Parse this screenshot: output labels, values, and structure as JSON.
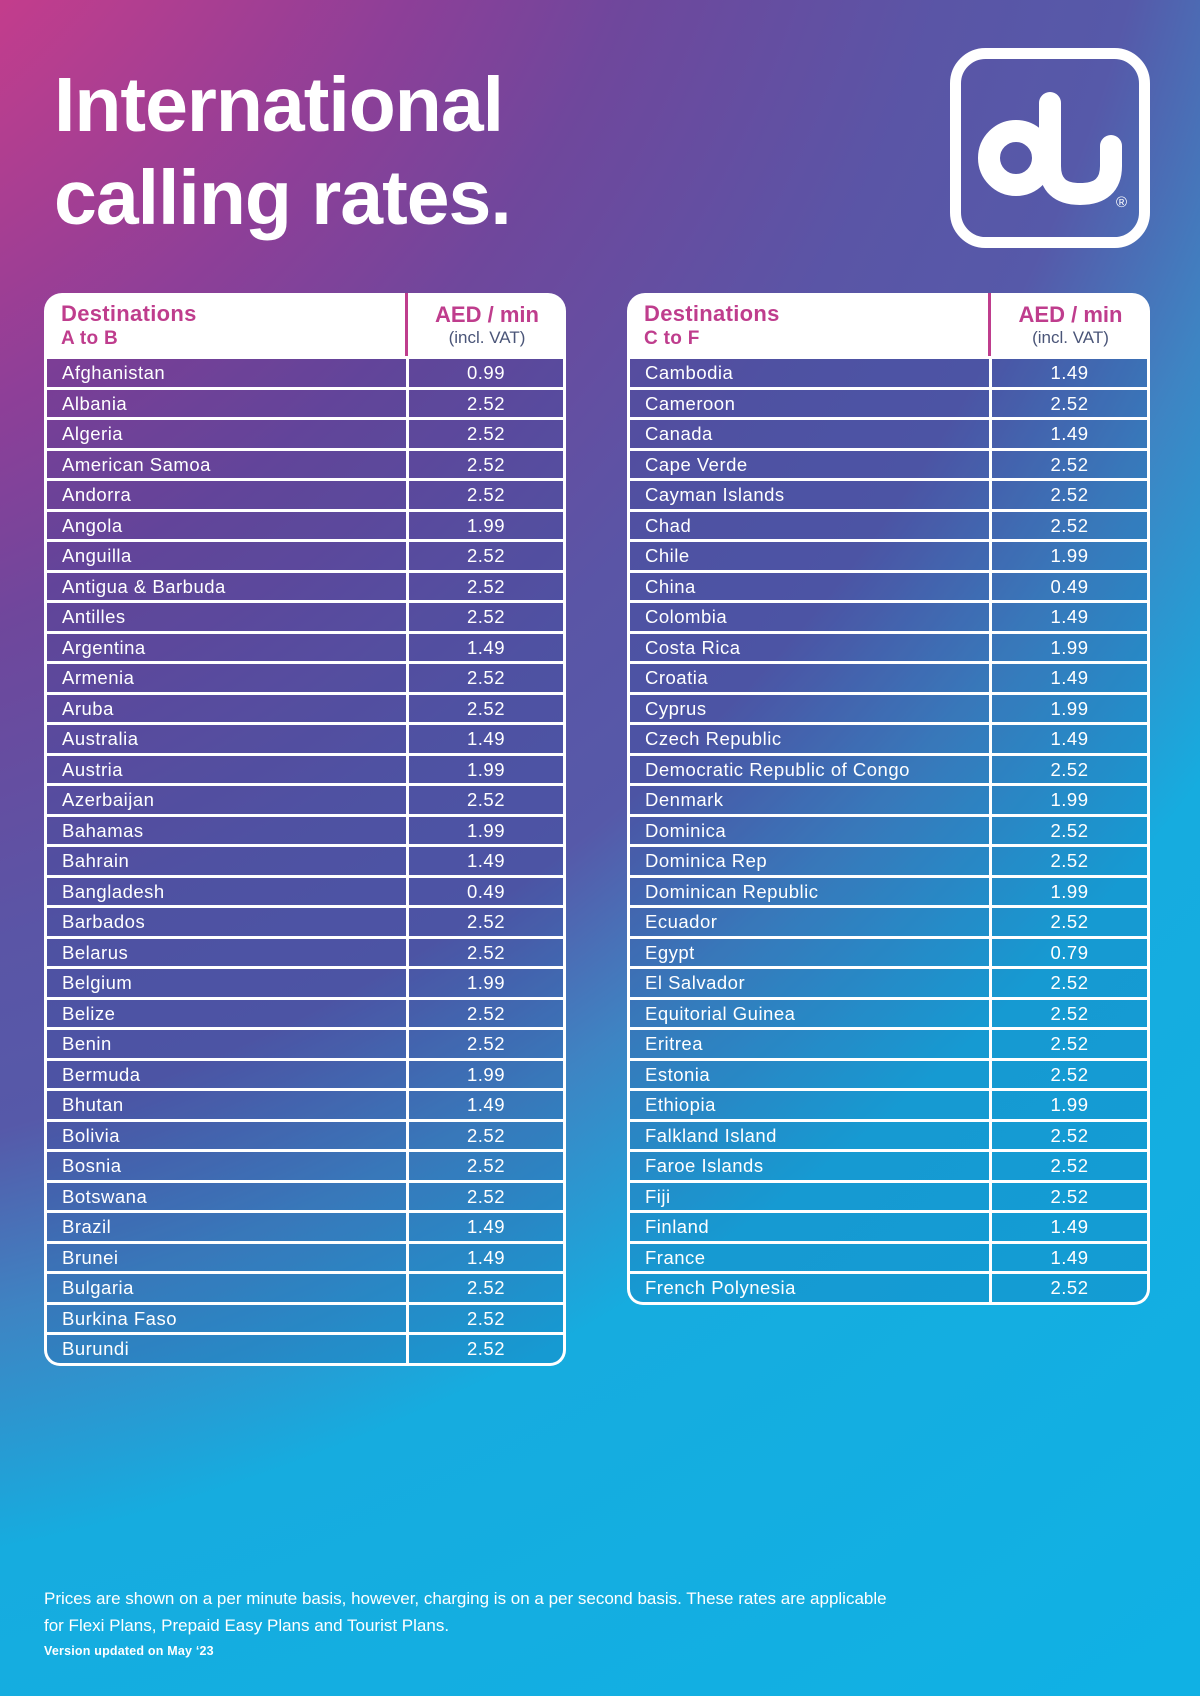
{
  "title": {
    "line1": "International",
    "line2": "calling rates."
  },
  "logo": {
    "brand": "du",
    "registered": "®"
  },
  "colors": {
    "magenta": "#bf3d8d",
    "vat_text": "#4a5578",
    "background_top_left": "#c63d8c",
    "background_bottom": "#10b1e4"
  },
  "tables": [
    {
      "header": {
        "destinations_label": "Destinations",
        "range_label": "A to B",
        "rate_label": "AED / min",
        "vat_label": "(incl. VAT)"
      },
      "rows": [
        {
          "country": "Afghanistan",
          "rate": "0.99"
        },
        {
          "country": "Albania",
          "rate": "2.52"
        },
        {
          "country": "Algeria",
          "rate": "2.52"
        },
        {
          "country": "American Samoa",
          "rate": "2.52"
        },
        {
          "country": "Andorra",
          "rate": "2.52"
        },
        {
          "country": "Angola",
          "rate": "1.99"
        },
        {
          "country": "Anguilla",
          "rate": "2.52"
        },
        {
          "country": "Antigua & Barbuda",
          "rate": "2.52"
        },
        {
          "country": "Antilles",
          "rate": "2.52"
        },
        {
          "country": "Argentina",
          "rate": "1.49"
        },
        {
          "country": "Armenia",
          "rate": "2.52"
        },
        {
          "country": "Aruba",
          "rate": "2.52"
        },
        {
          "country": "Australia",
          "rate": "1.49"
        },
        {
          "country": "Austria",
          "rate": "1.99"
        },
        {
          "country": "Azerbaijan",
          "rate": "2.52"
        },
        {
          "country": "Bahamas",
          "rate": "1.99"
        },
        {
          "country": "Bahrain",
          "rate": "1.49"
        },
        {
          "country": "Bangladesh",
          "rate": "0.49"
        },
        {
          "country": "Barbados",
          "rate": "2.52"
        },
        {
          "country": "Belarus",
          "rate": "2.52"
        },
        {
          "country": "Belgium",
          "rate": "1.99"
        },
        {
          "country": "Belize",
          "rate": "2.52"
        },
        {
          "country": "Benin",
          "rate": "2.52"
        },
        {
          "country": "Bermuda",
          "rate": "1.99"
        },
        {
          "country": "Bhutan",
          "rate": "1.49"
        },
        {
          "country": "Bolivia",
          "rate": "2.52"
        },
        {
          "country": "Bosnia",
          "rate": "2.52"
        },
        {
          "country": "Botswana",
          "rate": "2.52"
        },
        {
          "country": "Brazil",
          "rate": "1.49"
        },
        {
          "country": "Brunei",
          "rate": "1.49"
        },
        {
          "country": "Bulgaria",
          "rate": "2.52"
        },
        {
          "country": "Burkina Faso",
          "rate": "2.52"
        },
        {
          "country": "Burundi",
          "rate": "2.52"
        }
      ]
    },
    {
      "header": {
        "destinations_label": "Destinations",
        "range_label": "C to F",
        "rate_label": "AED / min",
        "vat_label": "(incl. VAT)"
      },
      "rows": [
        {
          "country": "Cambodia",
          "rate": "1.49"
        },
        {
          "country": "Cameroon",
          "rate": "2.52"
        },
        {
          "country": "Canada",
          "rate": "1.49"
        },
        {
          "country": "Cape Verde",
          "rate": "2.52"
        },
        {
          "country": "Cayman Islands",
          "rate": "2.52"
        },
        {
          "country": "Chad",
          "rate": "2.52"
        },
        {
          "country": "Chile",
          "rate": "1.99"
        },
        {
          "country": "China",
          "rate": "0.49"
        },
        {
          "country": "Colombia",
          "rate": "1.49"
        },
        {
          "country": "Costa Rica",
          "rate": "1.99"
        },
        {
          "country": "Croatia",
          "rate": "1.49"
        },
        {
          "country": "Cyprus",
          "rate": "1.99"
        },
        {
          "country": "Czech Republic",
          "rate": "1.49"
        },
        {
          "country": "Democratic Republic of Congo",
          "rate": "2.52"
        },
        {
          "country": "Denmark",
          "rate": "1.99"
        },
        {
          "country": "Dominica",
          "rate": "2.52"
        },
        {
          "country": "Dominica Rep",
          "rate": "2.52"
        },
        {
          "country": "Dominican Republic",
          "rate": "1.99"
        },
        {
          "country": "Ecuador",
          "rate": "2.52"
        },
        {
          "country": "Egypt",
          "rate": "0.79"
        },
        {
          "country": "El Salvador",
          "rate": "2.52"
        },
        {
          "country": "Equitorial Guinea",
          "rate": "2.52"
        },
        {
          "country": "Eritrea",
          "rate": "2.52"
        },
        {
          "country": "Estonia",
          "rate": "2.52"
        },
        {
          "country": "Ethiopia",
          "rate": "1.99"
        },
        {
          "country": "Falkland Island",
          "rate": "2.52"
        },
        {
          "country": "Faroe Islands",
          "rate": "2.52"
        },
        {
          "country": "Fiji",
          "rate": "2.52"
        },
        {
          "country": "Finland",
          "rate": "1.49"
        },
        {
          "country": "France",
          "rate": "1.49"
        },
        {
          "country": "French Polynesia",
          "rate": "2.52"
        }
      ]
    }
  ],
  "footer": {
    "note_line1": "Prices are shown on a per minute basis, however, charging is on a per second basis. These rates are applicable",
    "note_line2": "for Flexi Plans, Prepaid Easy Plans and Tourist Plans.",
    "version": "Version updated on May ‘23"
  }
}
